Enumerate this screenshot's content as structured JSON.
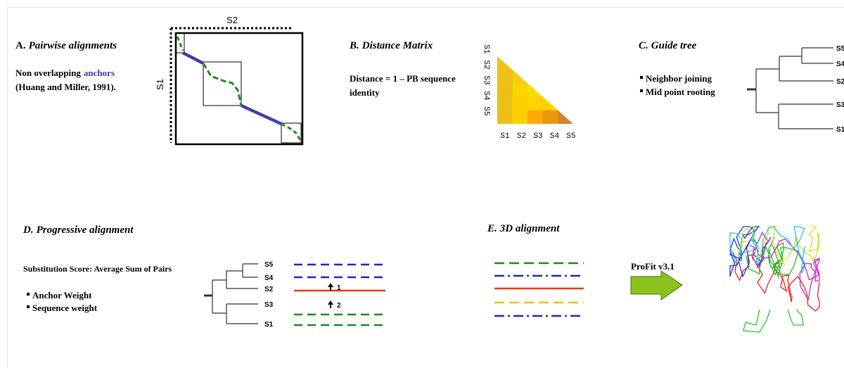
{
  "panel_a": {
    "letter": "A.",
    "title": "Pairwise alignments",
    "text_before": "Non overlapping",
    "highlight": "anchors",
    "text_line2": "(Huang and Miller, 1991).",
    "x_label": "S2",
    "y_label": "S1"
  },
  "panel_b": {
    "letter": "B.",
    "title": "Distance Matrix",
    "description": [
      "Distance = 1 – PB sequence",
      "identity"
    ],
    "row_labels": [
      "S1",
      "S2",
      "S3",
      "S4",
      "S5"
    ],
    "column_labels": [
      "S1",
      "S2",
      "S3",
      "S4",
      "S5"
    ]
  },
  "panel_c": {
    "letter": "C.",
    "title": "Guide tree",
    "bullets": [
      "Neighbor joining",
      "Mid point rooting"
    ],
    "leaves": [
      "S5",
      "S4",
      "S2",
      "S3",
      "S1"
    ]
  },
  "panel_d": {
    "letter": "D.",
    "title": "Progressive alignment",
    "description": "Substitution Score: Average Sum of Pairs",
    "bullets": [
      "Anchor Weight",
      "Sequence weight"
    ],
    "leaves": [
      "S5",
      "S4",
      "S2",
      "S3",
      "S1"
    ],
    "steps": [
      "1",
      "2"
    ]
  },
  "panel_e": {
    "letter": "E.",
    "title": "3D alignment",
    "tool": "ProFit v3.1"
  }
}
